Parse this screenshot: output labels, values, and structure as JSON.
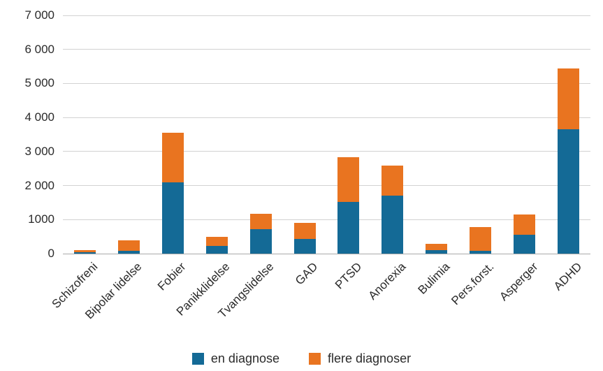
{
  "chart_data": {
    "type": "bar",
    "stacked": true,
    "title": "",
    "xlabel": "",
    "ylabel": "",
    "categories": [
      "Schizofreni",
      "Bipolar lidelse",
      "Fobier",
      "Panikklidelse",
      "Tvangslidelse",
      "GAD",
      "PTSD",
      "Anorexia",
      "Bulimia",
      "Pers.forst.",
      "Asperger",
      "ADHD"
    ],
    "series": [
      {
        "name": "en diagnose",
        "color": "#146a96",
        "values": [
          50,
          90,
          2100,
          220,
          720,
          440,
          1520,
          1710,
          100,
          80,
          550,
          3650
        ]
      },
      {
        "name": "flere diagnoser",
        "color": "#e97420",
        "values": [
          60,
          290,
          1460,
          270,
          460,
          470,
          1320,
          870,
          190,
          700,
          600,
          1800
        ]
      }
    ],
    "totals": [
      110,
      380,
      3560,
      490,
      1180,
      910,
      2840,
      2580,
      290,
      780,
      1150,
      5450
    ],
    "ylim": [
      0,
      7000
    ],
    "ytick_interval": 1000,
    "ytick_labels": [
      "0",
      "1000",
      "2 000",
      "3 000",
      "4 000",
      "5 000",
      "6 000",
      "7 000"
    ],
    "grid": "horizontal",
    "legend_position": "bottom-center"
  },
  "legend": {
    "items": [
      {
        "label": "en diagnose",
        "color": "#146a96"
      },
      {
        "label": "flere diagnoser",
        "color": "#e97420"
      }
    ]
  },
  "colors": {
    "series_blue": "#146a96",
    "series_orange": "#e97420",
    "gridline": "#d2d2d2",
    "axis_line": "#a9a9a9",
    "text": "#2a2a2a",
    "background": "#ffffff"
  }
}
